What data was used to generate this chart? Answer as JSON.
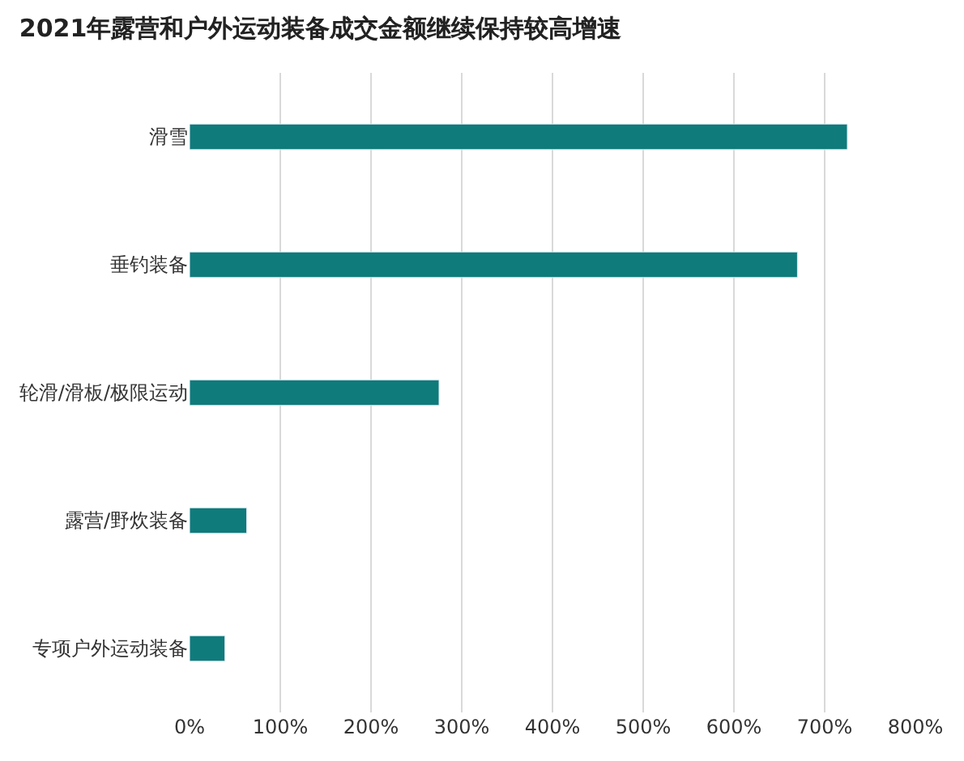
{
  "chart_data": {
    "type": "bar",
    "orientation": "horizontal",
    "title": "2021年露营和户外运动装备成交金额继续保持较高增速",
    "categories": [
      "滑雪",
      "垂钓装备",
      "轮滑/滑板/极限运动",
      "露营/野炊装备",
      "专项户外运动装备"
    ],
    "values": [
      725,
      670,
      275,
      63,
      39
    ],
    "color": "#0f7b7b",
    "xlim": [
      0,
      800
    ],
    "xticks": [
      {
        "value": 0,
        "label": "0%"
      },
      {
        "value": 100,
        "label": "100%"
      },
      {
        "value": 200,
        "label": "200%"
      },
      {
        "value": 300,
        "label": "300%"
      },
      {
        "value": 400,
        "label": "400%"
      },
      {
        "value": 500,
        "label": "500%"
      },
      {
        "value": 600,
        "label": "600%"
      },
      {
        "value": 700,
        "label": "700%"
      },
      {
        "value": 800,
        "label": "800%"
      }
    ],
    "grid": "x"
  }
}
